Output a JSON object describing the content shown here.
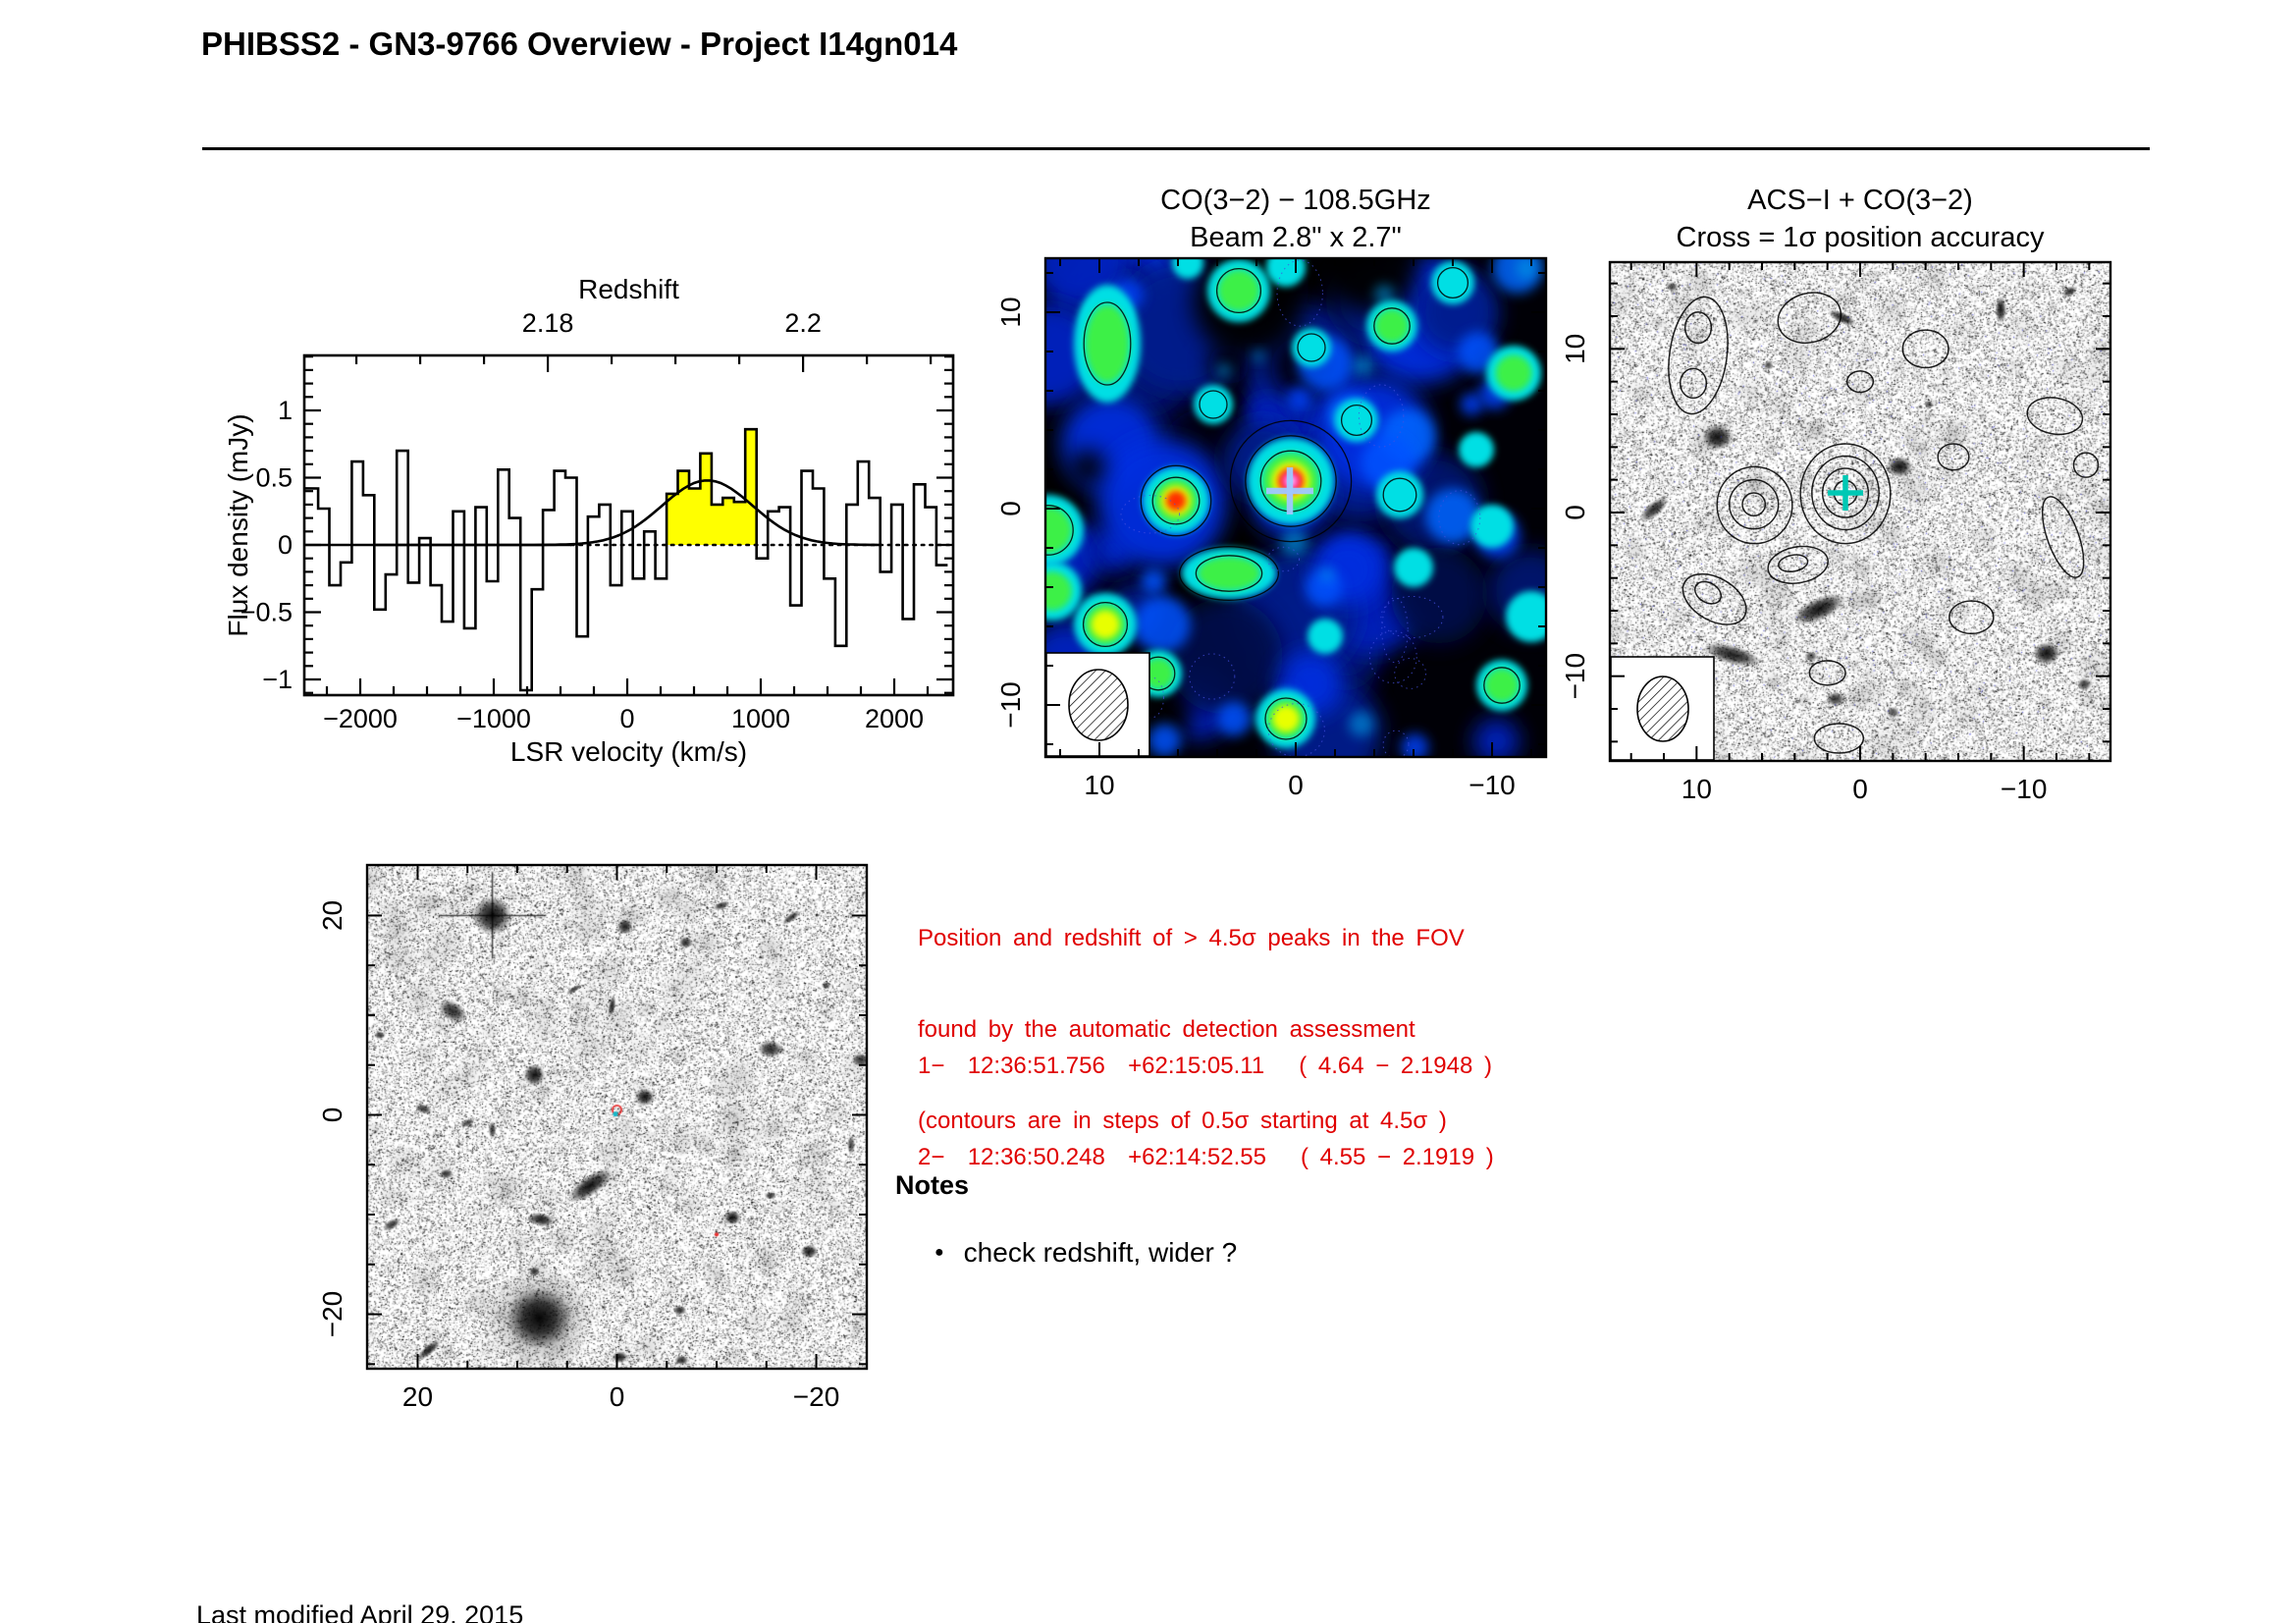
{
  "page": {
    "title": "PHIBSS2 - GN3-9766 Overview - Project I14gn014",
    "footer": "Last modified April 29, 2015"
  },
  "colors": {
    "annotation_red": "#e00000",
    "signal_fill": "#ffff00",
    "co_cross": "#a0c8ff",
    "acs_cross": "#00c8b4",
    "wide_marker_red": "#e83030",
    "wide_marker_cyan": "#18b8c8"
  },
  "annotations": {
    "lines": [
      "Position and redshift of > 4.5σ peaks in the FOV",
      "found by the automatic detection assessment",
      "(contours are in steps of 0.5σ starting at 4.5σ )"
    ],
    "detections": [
      "1−  12:36:51.756  +62:15:05.11   ( 4.64 − 2.1948 )",
      "2−  12:36:50.248  +62:14:52.55   ( 4.55 − 2.1919 )"
    ]
  },
  "notes": {
    "heading": "Notes",
    "items": [
      "check redshift, wider ?"
    ]
  },
  "chart_data": [
    {
      "type": "line",
      "subtype": "spectrum-histogram",
      "xlabel": "LSR velocity (km/s)",
      "ylabel": "Flux density (mJy)",
      "xlim": [
        -2420,
        2440
      ],
      "ylim": [
        -1.12,
        1.41
      ],
      "top_axis": {
        "label": "Redshift",
        "major_ticks": [
          {
            "label": "2.18",
            "velocity_kms": -595
          },
          {
            "label": "2.2",
            "velocity_kms": 1317
          }
        ],
        "minor_tick_step_kms": 478
      },
      "x_major_ticks": [
        {
          "label": "−2000",
          "v": -2000
        },
        {
          "label": "−1000",
          "v": -1000
        },
        {
          "label": "0",
          "v": 0
        },
        {
          "label": "1000",
          "v": 1000
        },
        {
          "label": "2000",
          "v": 2000
        }
      ],
      "x_minor_step_kms": 250,
      "y_major_ticks": [
        {
          "label": "1",
          "v": 1
        },
        {
          "label": "0.5",
          "v": 0.5
        },
        {
          "label": "0",
          "v": 0
        },
        {
          "label": "−0.5",
          "v": -0.5
        },
        {
          "label": "−1",
          "v": -1
        }
      ],
      "y_minor_step_mJy": 0.1,
      "bins": {
        "start_kms": -2400,
        "width_kms": 84.21,
        "flux_mJy": [
          0.42,
          0.27,
          -0.3,
          -0.13,
          0.62,
          0.37,
          -0.48,
          -0.22,
          0.7,
          -0.28,
          0.05,
          -0.3,
          -0.57,
          0.25,
          -0.62,
          0.28,
          -0.27,
          0.56,
          0.2,
          -1.08,
          -0.33,
          0.26,
          0.55,
          0.5,
          -0.68,
          0.21,
          0.3,
          -0.3,
          0.25,
          -0.25,
          0.1,
          -0.25,
          0.38,
          0.55,
          0.42,
          0.68,
          0.3,
          0.35,
          0.32,
          0.86,
          -0.1,
          0.25,
          0.28,
          -0.45,
          0.55,
          0.42,
          -0.25,
          -0.75,
          0.3,
          0.62,
          0.35,
          -0.2,
          0.3,
          -0.55,
          0.45,
          0.28,
          -0.15
        ]
      },
      "signal_region": {
        "start_index": 32,
        "end_index": 40,
        "fill": "#ffff00"
      },
      "fit": {
        "shape": "gaussian",
        "amplitude_mJy": 0.48,
        "center_kms": 600,
        "sigma_kms": 340
      },
      "zero_line": {
        "solid_until_kms": -420,
        "dotted_after": true
      }
    },
    {
      "type": "heatmap",
      "title": "CO(3−2) − 108.5GHz",
      "subtitle": "Beam 2.8\" x 2.7\"",
      "range_arcsec": 12.75,
      "minor_tick_step_arcsec": 2,
      "x_ticks": [
        {
          "label": "10",
          "v": 10
        },
        {
          "label": "0",
          "v": 0
        },
        {
          "label": "−10",
          "v": -10
        }
      ],
      "y_ticks": [
        {
          "label": "10",
          "v": 10
        },
        {
          "label": "0",
          "v": 0
        },
        {
          "label": "−10",
          "v": -10
        }
      ],
      "colormap": "black-blue-cyan-green-yellow-red-magenta-white",
      "cross": {
        "x_arcsec": 0.3,
        "y_arcsec": 0.9,
        "color": "#a0c8ff"
      },
      "beam_inset": true,
      "peaks": [
        {
          "x": 9.6,
          "y": 9.6,
          "r": 1.25,
          "level": "yellow",
          "rings": 1
        },
        {
          "x": 9.7,
          "y": 7.2,
          "r": 1.1,
          "level": "yellow",
          "rings": 1
        },
        {
          "x": 9.6,
          "y": 8.4,
          "rx": 1.7,
          "ry": 3.0,
          "r": 2.2,
          "level": "green",
          "rings": 1
        },
        {
          "x": 2.9,
          "y": 11.1,
          "r": 1.6,
          "level": "green",
          "rings": 1
        },
        {
          "x": -0.8,
          "y": 8.2,
          "r": 1.0,
          "level": "cyan",
          "rings": 1
        },
        {
          "x": -4.9,
          "y": 9.3,
          "r": 1.3,
          "level": "green",
          "rings": 1
        },
        {
          "x": -11.1,
          "y": 6.9,
          "r": 1.4,
          "level": "green",
          "rings": 0
        },
        {
          "x": 4.2,
          "y": 5.3,
          "r": 1.0,
          "level": "cyan",
          "rings": 1
        },
        {
          "x": -3.1,
          "y": 4.5,
          "r": 1.1,
          "level": "cyan",
          "rings": 1
        },
        {
          "x": -9.2,
          "y": 3.0,
          "r": 0.9,
          "level": "cyan",
          "rings": 0
        },
        {
          "x": 6.1,
          "y": 0.4,
          "r": 1.7,
          "level": "red",
          "rings": 2
        },
        {
          "x": 0.25,
          "y": 1.4,
          "r": 2.2,
          "level": "hot",
          "rings": 3
        },
        {
          "x": -5.3,
          "y": 0.7,
          "r": 1.2,
          "level": "cyan",
          "rings": 1
        },
        {
          "x": 12.6,
          "y": -1.1,
          "r": 1.8,
          "level": "green",
          "rings": 1
        },
        {
          "x": 12.4,
          "y": -4.2,
          "r": 1.5,
          "level": "green",
          "rings": 0
        },
        {
          "x": 9.7,
          "y": -5.9,
          "r": 1.6,
          "level": "yellow",
          "rings": 1
        },
        {
          "x": 3.4,
          "y": -3.3,
          "rx": 2.4,
          "ry": 1.3,
          "r": 1.9,
          "level": "green",
          "rings": 2
        },
        {
          "x": 7.0,
          "y": -8.4,
          "r": 1.2,
          "level": "green",
          "rings": 1
        },
        {
          "x": 0.5,
          "y": -10.7,
          "r": 1.5,
          "level": "yellow",
          "rings": 1
        },
        {
          "x": -10.5,
          "y": -9.0,
          "r": 1.3,
          "level": "green",
          "rings": 1
        },
        {
          "x": -10.0,
          "y": -0.9,
          "r": 1.1,
          "level": "cyan",
          "rings": 0
        },
        {
          "x": -12.0,
          "y": -5.5,
          "r": 1.3,
          "level": "cyan",
          "rings": 0
        },
        {
          "x": -6.0,
          "y": -3.0,
          "r": 1.0,
          "level": "cyan",
          "rings": 0
        },
        {
          "x": -1.5,
          "y": -6.5,
          "r": 0.9,
          "level": "cyan",
          "rings": 0
        },
        {
          "x": -8.0,
          "y": 11.5,
          "r": 1.1,
          "level": "cyan",
          "rings": 1
        },
        {
          "x": 0.5,
          "y": 12.3,
          "r": 1.0,
          "level": "cyan",
          "rings": 0
        },
        {
          "x": 5.5,
          "y": 12.5,
          "r": 0.8,
          "level": "cyan",
          "rings": 0
        }
      ]
    },
    {
      "type": "overlay_map",
      "title": "ACS−I + CO(3−2)",
      "subtitle": "Cross = 1σ position accuracy",
      "range_arcsec": 15.3,
      "minor_tick_step_arcsec": 2,
      "x_ticks": [
        {
          "label": "10",
          "v": 10
        },
        {
          "label": "0",
          "v": 0
        },
        {
          "label": "−10",
          "v": -10
        }
      ],
      "y_ticks": [
        {
          "label": "10",
          "v": 10
        },
        {
          "label": "0",
          "v": 0
        },
        {
          "label": "−10",
          "v": -10
        }
      ],
      "cross": {
        "x_arcsec": 0.9,
        "y_arcsec": 1.2,
        "color": "#00c8b4"
      },
      "beam_inset": true,
      "galaxies": [
        {
          "x": 8.7,
          "y": 4.6,
          "rx": 0.95,
          "ry": 0.8,
          "rot": 0,
          "a": 0.95
        },
        {
          "x": -2.4,
          "y": 2.8,
          "rx": 0.8,
          "ry": 0.65,
          "rot": 0,
          "a": 0.95
        },
        {
          "x": 1.1,
          "y": 11.9,
          "rx": 0.95,
          "ry": 0.35,
          "rot": 25,
          "a": 0.85
        },
        {
          "x": -8.6,
          "y": 12.4,
          "rx": 0.35,
          "ry": 0.85,
          "rot": 0,
          "a": 0.9
        },
        {
          "x": 2.5,
          "y": -5.9,
          "rx": 1.75,
          "ry": 0.7,
          "rot": -25,
          "a": 0.95
        },
        {
          "x": 7.8,
          "y": -8.7,
          "rx": 1.8,
          "ry": 0.6,
          "rot": 15,
          "a": 0.9
        },
        {
          "x": -11.4,
          "y": -8.6,
          "rx": 0.85,
          "ry": 0.7,
          "rot": 0,
          "a": 0.95
        },
        {
          "x": 12.6,
          "y": 0.2,
          "rx": 1.1,
          "ry": 0.45,
          "rot": -40,
          "a": 0.85
        },
        {
          "x": 1.5,
          "y": -11.4,
          "rx": 0.6,
          "ry": 0.45,
          "rot": 0,
          "a": 0.8
        },
        {
          "x": -13.7,
          "y": -10.5,
          "rx": 0.45,
          "ry": 0.4,
          "rot": 0,
          "a": 0.8
        },
        {
          "x": 5.6,
          "y": 9.0,
          "rx": 0.3,
          "ry": 0.3,
          "rot": 0,
          "a": 0.7
        },
        {
          "x": -4.2,
          "y": 6.6,
          "rx": 0.28,
          "ry": 0.28,
          "rot": 0,
          "a": 0.7
        },
        {
          "x": 3.0,
          "y": -8.8,
          "rx": 0.4,
          "ry": 0.3,
          "rot": 0,
          "a": 0.7
        },
        {
          "x": -2.0,
          "y": -12.2,
          "rx": 0.4,
          "ry": 0.35,
          "rot": 0,
          "a": 0.7
        },
        {
          "x": -12.8,
          "y": 13.5,
          "rx": 0.5,
          "ry": 0.3,
          "rot": -30,
          "a": 0.8
        },
        {
          "x": 11.5,
          "y": 13.8,
          "rx": 0.4,
          "ry": 0.3,
          "rot": 0,
          "a": 0.7
        }
      ],
      "contours": [
        {
          "x": 0.9,
          "y": 1.2,
          "rx": 0.7,
          "ry": 0.75,
          "rot": 0
        },
        {
          "x": 0.9,
          "y": 1.2,
          "rx": 1.4,
          "ry": 1.5,
          "rot": 0
        },
        {
          "x": 0.9,
          "y": 1.2,
          "rx": 2.05,
          "ry": 2.25,
          "rot": 0
        },
        {
          "x": 0.9,
          "y": 1.15,
          "rx": 2.75,
          "ry": 3.05,
          "rot": 0
        },
        {
          "x": 6.5,
          "y": 0.5,
          "rx": 0.7,
          "ry": 0.7,
          "rot": 0
        },
        {
          "x": 6.5,
          "y": 0.5,
          "rx": 1.5,
          "ry": 1.5,
          "rot": 0
        },
        {
          "x": 6.45,
          "y": 0.45,
          "rx": 2.3,
          "ry": 2.35,
          "rot": 0
        },
        {
          "x": 9.9,
          "y": 9.6,
          "rx": 1.75,
          "ry": 3.6,
          "rot": 8
        },
        {
          "x": 9.9,
          "y": 11.3,
          "rx": 0.8,
          "ry": 0.95,
          "rot": 0
        },
        {
          "x": 10.2,
          "y": 7.9,
          "rx": 0.8,
          "ry": 0.9,
          "rot": 0
        },
        {
          "x": 3.1,
          "y": 11.9,
          "rx": 1.95,
          "ry": 1.5,
          "rot": -15
        },
        {
          "x": 0.0,
          "y": 8.0,
          "rx": 0.8,
          "ry": 0.65,
          "rot": 0
        },
        {
          "x": -4.0,
          "y": 10.0,
          "rx": 1.4,
          "ry": 1.15,
          "rot": 0
        },
        {
          "x": -11.9,
          "y": 5.9,
          "rx": 1.7,
          "ry": 1.1,
          "rot": 10
        },
        {
          "x": -5.7,
          "y": 3.4,
          "rx": 0.95,
          "ry": 0.8,
          "rot": 0
        },
        {
          "x": 8.9,
          "y": -5.3,
          "rx": 2.1,
          "ry": 1.3,
          "rot": 30
        },
        {
          "x": 9.3,
          "y": -4.9,
          "rx": 0.85,
          "ry": 0.6,
          "rot": 30
        },
        {
          "x": 3.8,
          "y": -3.2,
          "rx": 1.85,
          "ry": 1.1,
          "rot": -10
        },
        {
          "x": 4.1,
          "y": -3.1,
          "rx": 0.9,
          "ry": 0.5,
          "rot": -10
        },
        {
          "x": -6.8,
          "y": -6.4,
          "rx": 1.35,
          "ry": 1.0,
          "rot": 0
        },
        {
          "x": -12.4,
          "y": -1.5,
          "rx": 0.95,
          "ry": 2.6,
          "rot": -20
        },
        {
          "x": -13.8,
          "y": 2.9,
          "rx": 0.75,
          "ry": 0.75,
          "rot": 0
        },
        {
          "x": 1.3,
          "y": -13.8,
          "rx": 1.5,
          "ry": 0.9,
          "rot": 0
        },
        {
          "x": 2.0,
          "y": -9.8,
          "rx": 1.1,
          "ry": 0.75,
          "rot": 0
        },
        {
          "x": 12.0,
          "y": -13.0,
          "rx": 1.2,
          "ry": 0.8,
          "rot": 20
        }
      ]
    },
    {
      "type": "overlay_map",
      "title": "",
      "range_arcsec": 25.07,
      "minor_tick_step_arcsec": 5,
      "x_ticks": [
        {
          "label": "20",
          "v": 20
        },
        {
          "label": "0",
          "v": 0
        },
        {
          "label": "−20",
          "v": -20
        }
      ],
      "y_ticks": [
        {
          "label": "20",
          "v": 20
        },
        {
          "label": "0",
          "v": 0
        },
        {
          "label": "−20",
          "v": -20
        }
      ],
      "galaxies": [
        {
          "x": 12.5,
          "y": 20.0,
          "rx": 2.0,
          "ry": 2.0,
          "rot": 0,
          "a": 0.98,
          "spikes": true
        },
        {
          "x": -0.8,
          "y": 18.9,
          "rx": 0.8,
          "ry": 0.8,
          "rot": 0,
          "a": 0.9
        },
        {
          "x": 16.5,
          "y": 10.4,
          "rx": 1.6,
          "ry": 1.0,
          "rot": 30,
          "a": 0.85
        },
        {
          "x": 8.3,
          "y": 4.0,
          "rx": 1.1,
          "ry": 1.1,
          "rot": 0,
          "a": 0.95
        },
        {
          "x": -2.8,
          "y": 1.8,
          "rx": 1.0,
          "ry": 0.9,
          "rot": 0,
          "a": 0.95
        },
        {
          "x": 0.5,
          "y": 10.9,
          "rx": 0.35,
          "ry": 1.1,
          "rot": 10,
          "a": 0.85
        },
        {
          "x": 4.3,
          "y": 12.6,
          "rx": 0.9,
          "ry": 0.3,
          "rot": -30,
          "a": 0.8
        },
        {
          "x": 23.8,
          "y": 8.0,
          "rx": 0.6,
          "ry": 0.4,
          "rot": 0,
          "a": 0.8
        },
        {
          "x": 19.4,
          "y": 0.6,
          "rx": 0.9,
          "ry": 0.5,
          "rot": 20,
          "a": 0.8
        },
        {
          "x": 12.5,
          "y": -1.5,
          "rx": 0.4,
          "ry": 0.9,
          "rot": 0,
          "a": 0.8
        },
        {
          "x": 15.0,
          "y": -0.8,
          "rx": 0.8,
          "ry": 0.4,
          "rot": -20,
          "a": 0.75
        },
        {
          "x": 7.6,
          "y": -10.5,
          "rx": 1.4,
          "ry": 0.7,
          "rot": 10,
          "a": 0.9
        },
        {
          "x": 2.7,
          "y": -7.1,
          "rx": 2.6,
          "ry": 1.0,
          "rot": -35,
          "a": 0.97
        },
        {
          "x": 17.1,
          "y": -5.9,
          "rx": 0.7,
          "ry": 0.5,
          "rot": 0,
          "a": 0.8
        },
        {
          "x": 8.3,
          "y": -15.7,
          "rx": 0.5,
          "ry": 0.5,
          "rot": 0,
          "a": 0.85
        },
        {
          "x": 7.8,
          "y": -20.4,
          "rx": 3.3,
          "ry": 3.1,
          "rot": 0,
          "a": 1.0,
          "halo": true
        },
        {
          "x": 22.6,
          "y": -11.0,
          "rx": 1.0,
          "ry": 0.5,
          "rot": -30,
          "a": 0.8
        },
        {
          "x": -11.6,
          "y": -10.3,
          "rx": 0.85,
          "ry": 0.75,
          "rot": 0,
          "a": 0.95
        },
        {
          "x": -19.3,
          "y": -13.7,
          "rx": 0.9,
          "ry": 0.7,
          "rot": 0,
          "a": 0.9
        },
        {
          "x": -15.4,
          "y": -8.1,
          "rx": 0.6,
          "ry": 0.4,
          "rot": 0,
          "a": 0.8
        },
        {
          "x": -6.3,
          "y": -19.6,
          "rx": 0.7,
          "ry": 0.5,
          "rot": 0,
          "a": 0.85
        },
        {
          "x": 18.9,
          "y": -23.6,
          "rx": 1.5,
          "ry": 0.5,
          "rot": -40,
          "a": 0.9
        },
        {
          "x": -0.3,
          "y": -24.3,
          "rx": 0.8,
          "ry": 0.6,
          "rot": 0,
          "a": 0.9
        },
        {
          "x": -6.5,
          "y": -24.6,
          "rx": 0.7,
          "ry": 0.5,
          "rot": 0,
          "a": 0.85
        },
        {
          "x": -6.9,
          "y": 17.3,
          "rx": 0.7,
          "ry": 0.6,
          "rot": 0,
          "a": 0.85
        },
        {
          "x": -10.5,
          "y": 21.0,
          "rx": 0.9,
          "ry": 0.4,
          "rot": -20,
          "a": 0.8
        },
        {
          "x": -17.5,
          "y": 19.8,
          "rx": 1.1,
          "ry": 0.4,
          "rot": -35,
          "a": 0.8
        },
        {
          "x": -15.4,
          "y": 6.6,
          "rx": 1.3,
          "ry": 0.9,
          "rot": 0,
          "a": 0.85
        },
        {
          "x": -21.0,
          "y": 13.0,
          "rx": 0.5,
          "ry": 0.4,
          "rot": 0,
          "a": 0.7
        },
        {
          "x": -23.5,
          "y": -3.0,
          "rx": 0.4,
          "ry": 1.0,
          "rot": 0,
          "a": 0.75
        },
        {
          "x": -24.5,
          "y": 5.5,
          "rx": 1.0,
          "ry": 0.7,
          "rot": 0,
          "a": 0.8
        }
      ],
      "markers": [
        {
          "kind": "red-circle",
          "x": 0.0,
          "y": 0.5
        },
        {
          "kind": "cyan-dot",
          "x": 0.15,
          "y": 0.1
        },
        {
          "kind": "red-dot",
          "x": -10.0,
          "y": -12.0
        }
      ]
    }
  ]
}
